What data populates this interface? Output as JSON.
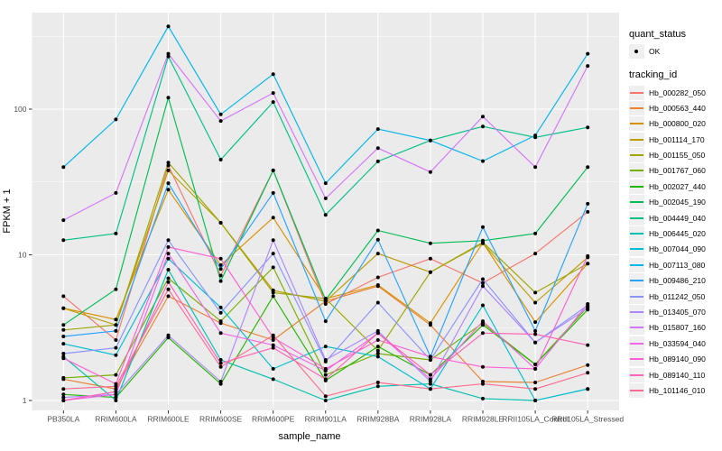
{
  "axes": {
    "x_title": "sample_name",
    "y_title": "FPKM + 1"
  },
  "legend": {
    "quant_status_title": "quant_status",
    "quant_status_items": [
      {
        "label": "OK"
      }
    ],
    "tracking_id_title": "tracking_id"
  },
  "style": {
    "panel_bg": "#EBEBEB",
    "grid_color": "#FFFFFF",
    "tick_color": "#333333",
    "tick_label_color": "#4D4D4D",
    "point_color": "#000000",
    "legend_key_bg": "#EFEFEF"
  },
  "chart_data": {
    "type": "line",
    "title": "",
    "xlabel": "sample_name",
    "ylabel": "FPKM + 1",
    "y_scale": "log10",
    "y_ticks": [
      1,
      10,
      100
    ],
    "y_minor_ticks": [
      3.162,
      31.62,
      316.2
    ],
    "ylim": [
      0.82,
      460
    ],
    "grid": true,
    "legend_position": "right",
    "quant_status": "OK",
    "point_marker": "black dot on every data point (quant_status OK)",
    "categories": [
      "PB350LA",
      "RRIM600LA",
      "RRIM600LE",
      "RRIM600SE",
      "RRIM600PE",
      "RRIM901LA",
      "RRIM928BA",
      "RRIM928LA",
      "RRIM928LE",
      "RRII105LA_Control",
      "RRII105LA_Stressed"
    ],
    "series": [
      {
        "name": "Hb_000282_050",
        "color": "#F8766D",
        "values": [
          5.2,
          2.6,
          41,
          7.2,
          38,
          4.6,
          7.0,
          9.4,
          6.4,
          10.2,
          19.7
        ]
      },
      {
        "name": "Hb_000563_440",
        "color": "#EB8335",
        "values": [
          1.4,
          1.2,
          5.2,
          3.4,
          2.6,
          4.8,
          6.1,
          3.3,
          1.35,
          1.33,
          1.75
        ]
      },
      {
        "name": "Hb_000800_020",
        "color": "#D89200",
        "values": [
          4.3,
          3.6,
          28,
          8.5,
          18,
          5.0,
          6.2,
          3.4,
          12.1,
          3.45,
          8.7
        ]
      },
      {
        "name": "Hb_001114_170",
        "color": "#BD9C00",
        "values": [
          4.3,
          3.3,
          38,
          16.6,
          5.7,
          4.8,
          10.2,
          7.6,
          12.0,
          4.7,
          9.6
        ]
      },
      {
        "name": "Hb_001155_050",
        "color": "#9CA700",
        "values": [
          3.05,
          3.3,
          43,
          16.6,
          5.5,
          5.0,
          2.2,
          7.6,
          12.2,
          5.5,
          8.7
        ]
      },
      {
        "name": "Hb_001767_060",
        "color": "#75B000",
        "values": [
          1.43,
          1.5,
          6.9,
          3.5,
          8.2,
          1.5,
          2.1,
          1.9,
          3.4,
          1.77,
          4.4
        ]
      },
      {
        "name": "Hb_002027_440",
        "color": "#24B700",
        "values": [
          1.1,
          1.05,
          2.7,
          1.3,
          5.2,
          1.37,
          2.35,
          1.5,
          3.3,
          1.77,
          4.2
        ]
      },
      {
        "name": "Hb_002045_190",
        "color": "#00BC51",
        "values": [
          3.3,
          5.8,
          120,
          6.6,
          38,
          4.9,
          14.7,
          12.0,
          12.5,
          14.0,
          40
        ]
      },
      {
        "name": "Hb_004449_040",
        "color": "#00C087",
        "values": [
          12.6,
          14,
          230,
          45,
          112,
          18.8,
          43.8,
          61,
          76,
          64,
          75
        ]
      },
      {
        "name": "Hb_006445_020",
        "color": "#00C0AF",
        "values": [
          2.0,
          1.0,
          7.9,
          1.9,
          1.4,
          1.0,
          1.25,
          1.3,
          1.03,
          1.0,
          1.2
        ]
      },
      {
        "name": "Hb_007044_090",
        "color": "#00BDD1",
        "values": [
          2.45,
          2.05,
          9.4,
          4.35,
          1.65,
          2.35,
          2.0,
          1.2,
          4.5,
          1.0,
          1.2
        ]
      },
      {
        "name": "Hb_007113_080",
        "color": "#00B5EB",
        "values": [
          40,
          85,
          370,
          92,
          174,
          31,
          73,
          61,
          44,
          66,
          240
        ]
      },
      {
        "name": "Hb_009486_210",
        "color": "#29A3FF",
        "values": [
          2.75,
          3.0,
          31,
          8.0,
          26.6,
          3.5,
          12.7,
          2.0,
          15.5,
          3.0,
          22.4
        ]
      },
      {
        "name": "Hb_011242_050",
        "color": "#8B93FF",
        "values": [
          2.1,
          2.3,
          12.6,
          4.0,
          10.2,
          1.85,
          4.7,
          1.9,
          6.8,
          2.5,
          4.5
        ]
      },
      {
        "name": "Hb_013405_070",
        "color": "#AE87FF",
        "values": [
          1.05,
          1.1,
          2.8,
          1.35,
          12.6,
          1.9,
          3.0,
          1.35,
          6.1,
          2.5,
          4.3
        ]
      },
      {
        "name": "Hb_015807_160",
        "color": "#D575FE",
        "values": [
          17.3,
          26.6,
          240,
          83,
          129,
          24.4,
          54,
          37,
          89,
          40,
          198
        ]
      },
      {
        "name": "Hb_033594_040",
        "color": "#EF67EB",
        "values": [
          1.0,
          1.1,
          10.2,
          2.9,
          2.4,
          1.6,
          2.9,
          1.4,
          3.5,
          1.65,
          4.6
        ]
      },
      {
        "name": "Hb_089140_090",
        "color": "#FD61D3",
        "values": [
          1.95,
          1.3,
          11.3,
          9.4,
          2.7,
          1.65,
          2.6,
          2.0,
          1.7,
          1.65,
          9.8
        ]
      },
      {
        "name": "Hb_089140_110",
        "color": "#FF62B6",
        "values": [
          1.0,
          1.15,
          6.5,
          1.8,
          2.3,
          1.4,
          2.9,
          1.5,
          2.9,
          2.85,
          2.4
        ]
      },
      {
        "name": "Hb_101146_010",
        "color": "#FF6C91",
        "values": [
          1.2,
          1.25,
          5.8,
          1.7,
          2.8,
          1.07,
          1.33,
          1.2,
          1.3,
          1.2,
          1.55
        ]
      }
    ]
  }
}
